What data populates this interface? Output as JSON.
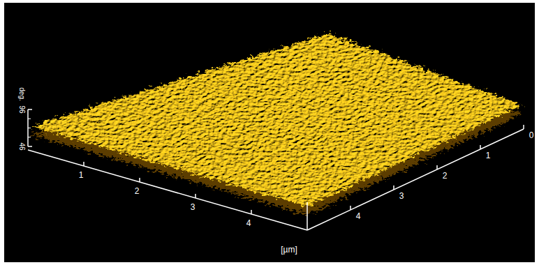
{
  "chart_data": {
    "type": "surface",
    "x_title": "[µm]",
    "xlim": [
      0,
      5
    ],
    "xticks": [
      1,
      2,
      3,
      4
    ],
    "ylim": [
      0,
      5
    ],
    "yticks": [
      0,
      1,
      2,
      3,
      4
    ],
    "zlim": [
      46,
      96
    ],
    "zticks": [
      46,
      96
    ],
    "z_title": "deg.",
    "grid": false
  }
}
